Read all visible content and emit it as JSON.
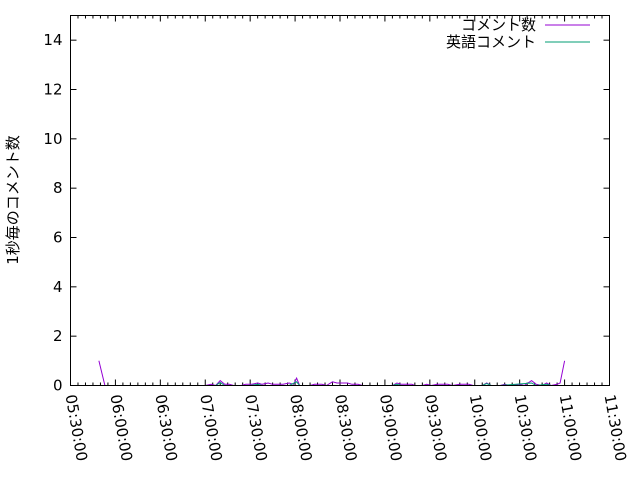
{
  "chart_data": {
    "type": "line",
    "title": "",
    "xlabel": "",
    "ylabel": "1秒毎のコメント数",
    "xlim": [
      "05:30:00",
      "11:30:00"
    ],
    "ylim": [
      0,
      15
    ],
    "xticks": [
      "05:30:00",
      "06:00:00",
      "06:30:00",
      "07:00:00",
      "07:30:00",
      "08:00:00",
      "08:30:00",
      "09:00:00",
      "09:30:00",
      "10:00:00",
      "10:30:00",
      "11:00:00",
      "11:30:00"
    ],
    "yticks": [
      0,
      2,
      4,
      6,
      8,
      10,
      12,
      14
    ],
    "grid": false,
    "legend_position": "top-right",
    "series": [
      {
        "name": "コメント数",
        "color": "#9400d3",
        "points": [
          [
            "05:49",
            1
          ],
          [
            "05:53",
            0
          ],
          null,
          [
            "06:03",
            0
          ],
          [
            "06:06",
            0
          ],
          null,
          [
            "07:00",
            0
          ],
          [
            "07:04",
            0.05
          ],
          [
            "07:07",
            0
          ],
          [
            "07:10",
            0.2
          ],
          [
            "07:13",
            0.05
          ],
          [
            "07:16",
            0.05
          ],
          [
            "07:19",
            0
          ],
          [
            "07:24",
            0
          ],
          [
            "07:27",
            0.05
          ],
          [
            "07:31",
            0.05
          ],
          [
            "07:35",
            0.1
          ],
          [
            "07:38",
            0.05
          ],
          [
            "07:42",
            0.1
          ],
          [
            "07:45",
            0.05
          ],
          [
            "07:52",
            0.05
          ],
          [
            "07:56",
            0.1
          ],
          [
            "07:59",
            0.05
          ],
          [
            "08:01",
            0.3
          ],
          [
            "08:03",
            0
          ],
          [
            "08:10",
            0
          ],
          [
            "08:13",
            0.05
          ],
          [
            "08:18",
            0.05
          ],
          [
            "08:21",
            0
          ],
          [
            "08:25",
            0.15
          ],
          [
            "08:28",
            0.1
          ],
          [
            "08:35",
            0.1
          ],
          [
            "08:38",
            0.05
          ],
          [
            "08:42",
            0.05
          ],
          [
            "08:45",
            0
          ],
          null,
          [
            "09:05",
            0
          ],
          [
            "09:08",
            0.1
          ],
          [
            "09:11",
            0.05
          ],
          [
            "09:18",
            0.05
          ],
          [
            "09:20",
            0
          ],
          [
            "09:25",
            0
          ],
          [
            "09:28",
            0.05
          ],
          [
            "09:31",
            0
          ],
          [
            "09:35",
            0.05
          ],
          [
            "09:42",
            0.05
          ],
          [
            "09:45",
            0
          ],
          [
            "09:50",
            0.05
          ],
          [
            "09:56",
            0.05
          ],
          [
            "09:59",
            0
          ],
          null,
          [
            "10:05",
            0
          ],
          [
            "10:08",
            0.1
          ],
          [
            "10:11",
            0
          ],
          null,
          [
            "10:17",
            0
          ],
          [
            "10:20",
            0.05
          ],
          [
            "10:23",
            0
          ],
          [
            "10:30",
            0.05
          ],
          [
            "10:33",
            0
          ],
          [
            "10:38",
            0.2
          ],
          [
            "10:41",
            0.05
          ],
          [
            "10:45",
            0
          ],
          [
            "10:48",
            0.1
          ],
          [
            "10:51",
            0
          ],
          [
            "10:55",
            0.05
          ],
          [
            "10:57",
            0.1
          ],
          [
            "11:00",
            1
          ]
        ]
      },
      {
        "name": "英語コメント",
        "color": "#009e73",
        "points": [
          [
            "07:00",
            0
          ],
          [
            "07:07",
            0
          ],
          [
            "07:10",
            0.12
          ],
          [
            "07:13",
            0
          ],
          [
            "07:30",
            0
          ],
          [
            "07:35",
            0.05
          ],
          [
            "07:38",
            0
          ],
          [
            "07:56",
            0
          ],
          [
            "08:01",
            0.15
          ],
          [
            "08:03",
            0
          ],
          [
            "08:45",
            0
          ],
          null,
          [
            "09:05",
            0
          ],
          [
            "09:08",
            0.05
          ],
          [
            "09:11",
            0
          ],
          [
            "09:59",
            0
          ],
          null,
          [
            "10:05",
            0
          ],
          [
            "10:08",
            0.08
          ],
          [
            "10:11",
            0
          ],
          null,
          [
            "10:17",
            0
          ],
          [
            "10:38",
            0.1
          ],
          [
            "10:41",
            0
          ],
          [
            "10:48",
            0.05
          ],
          [
            "10:51",
            0
          ],
          [
            "10:58",
            0
          ]
        ]
      }
    ]
  }
}
